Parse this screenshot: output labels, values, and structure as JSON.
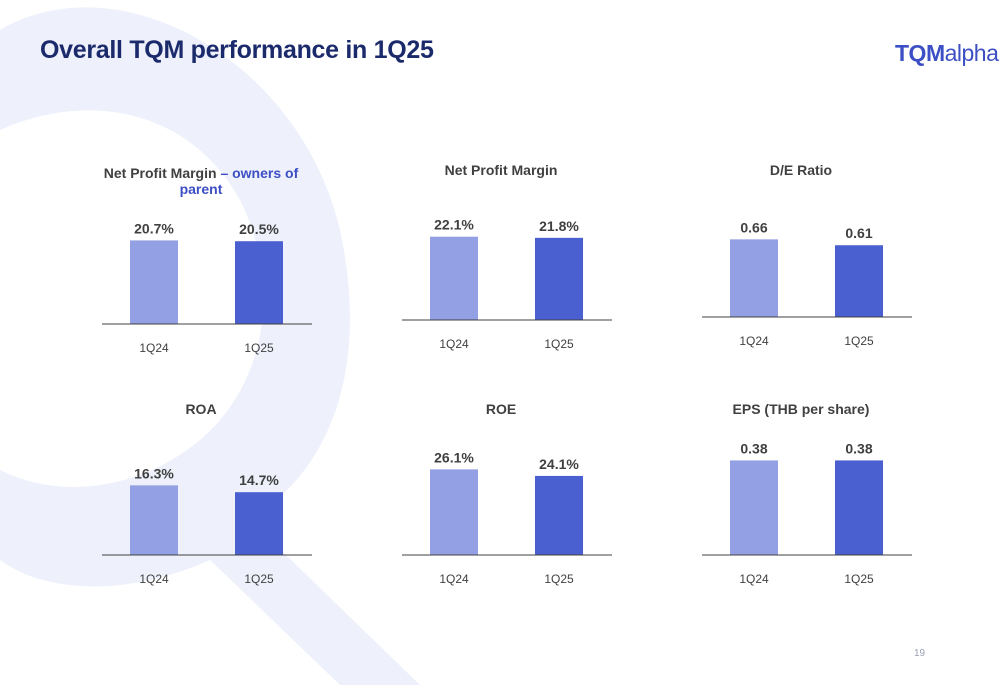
{
  "slide": {
    "title": "Overall TQM performance in 1Q25",
    "page_number": "19"
  },
  "logo": {
    "bold": "TQM",
    "light": "alpha"
  },
  "colors": {
    "prior": "#93a0e3",
    "current": "#4a60d0",
    "title": "#1b2a6b",
    "accent": "#3d4fc4"
  },
  "chart_data": [
    {
      "type": "bar",
      "title": "Net Profit Margin",
      "title_accent": "– owners of parent",
      "categories": [
        "1Q24",
        "1Q25"
      ],
      "values": [
        20.7,
        20.5
      ],
      "labels": [
        "20.7%",
        "20.5%"
      ],
      "ylim": [
        0,
        26
      ]
    },
    {
      "type": "bar",
      "title": "Net Profit Margin",
      "title_accent": "",
      "categories": [
        "1Q24",
        "1Q25"
      ],
      "values": [
        22.1,
        21.8
      ],
      "labels": [
        "22.1%",
        "21.8%"
      ],
      "ylim": [
        0,
        26
      ]
    },
    {
      "type": "bar",
      "title": "D/E Ratio",
      "title_accent": "",
      "categories": [
        "1Q24",
        "1Q25"
      ],
      "values": [
        0.66,
        0.61
      ],
      "labels": [
        "0.66",
        "0.61"
      ],
      "ylim": [
        0,
        0.85
      ]
    },
    {
      "type": "bar",
      "title": "ROA",
      "title_accent": "",
      "categories": [
        "1Q24",
        "1Q25"
      ],
      "values": [
        16.3,
        14.7
      ],
      "labels": [
        "16.3%",
        "14.7%"
      ],
      "ylim": [
        0,
        22
      ]
    },
    {
      "type": "bar",
      "title": "ROE",
      "title_accent": "",
      "categories": [
        "1Q24",
        "1Q25"
      ],
      "values": [
        26.1,
        24.1
      ],
      "labels": [
        "26.1%",
        "24.1%"
      ],
      "ylim": [
        0,
        32
      ]
    },
    {
      "type": "bar",
      "title": "EPS (THB per share)",
      "title_accent": "",
      "categories": [
        "1Q24",
        "1Q25"
      ],
      "values": [
        0.38,
        0.38
      ],
      "labels": [
        "0.38",
        "0.38"
      ],
      "ylim": [
        0,
        0.45
      ]
    }
  ]
}
